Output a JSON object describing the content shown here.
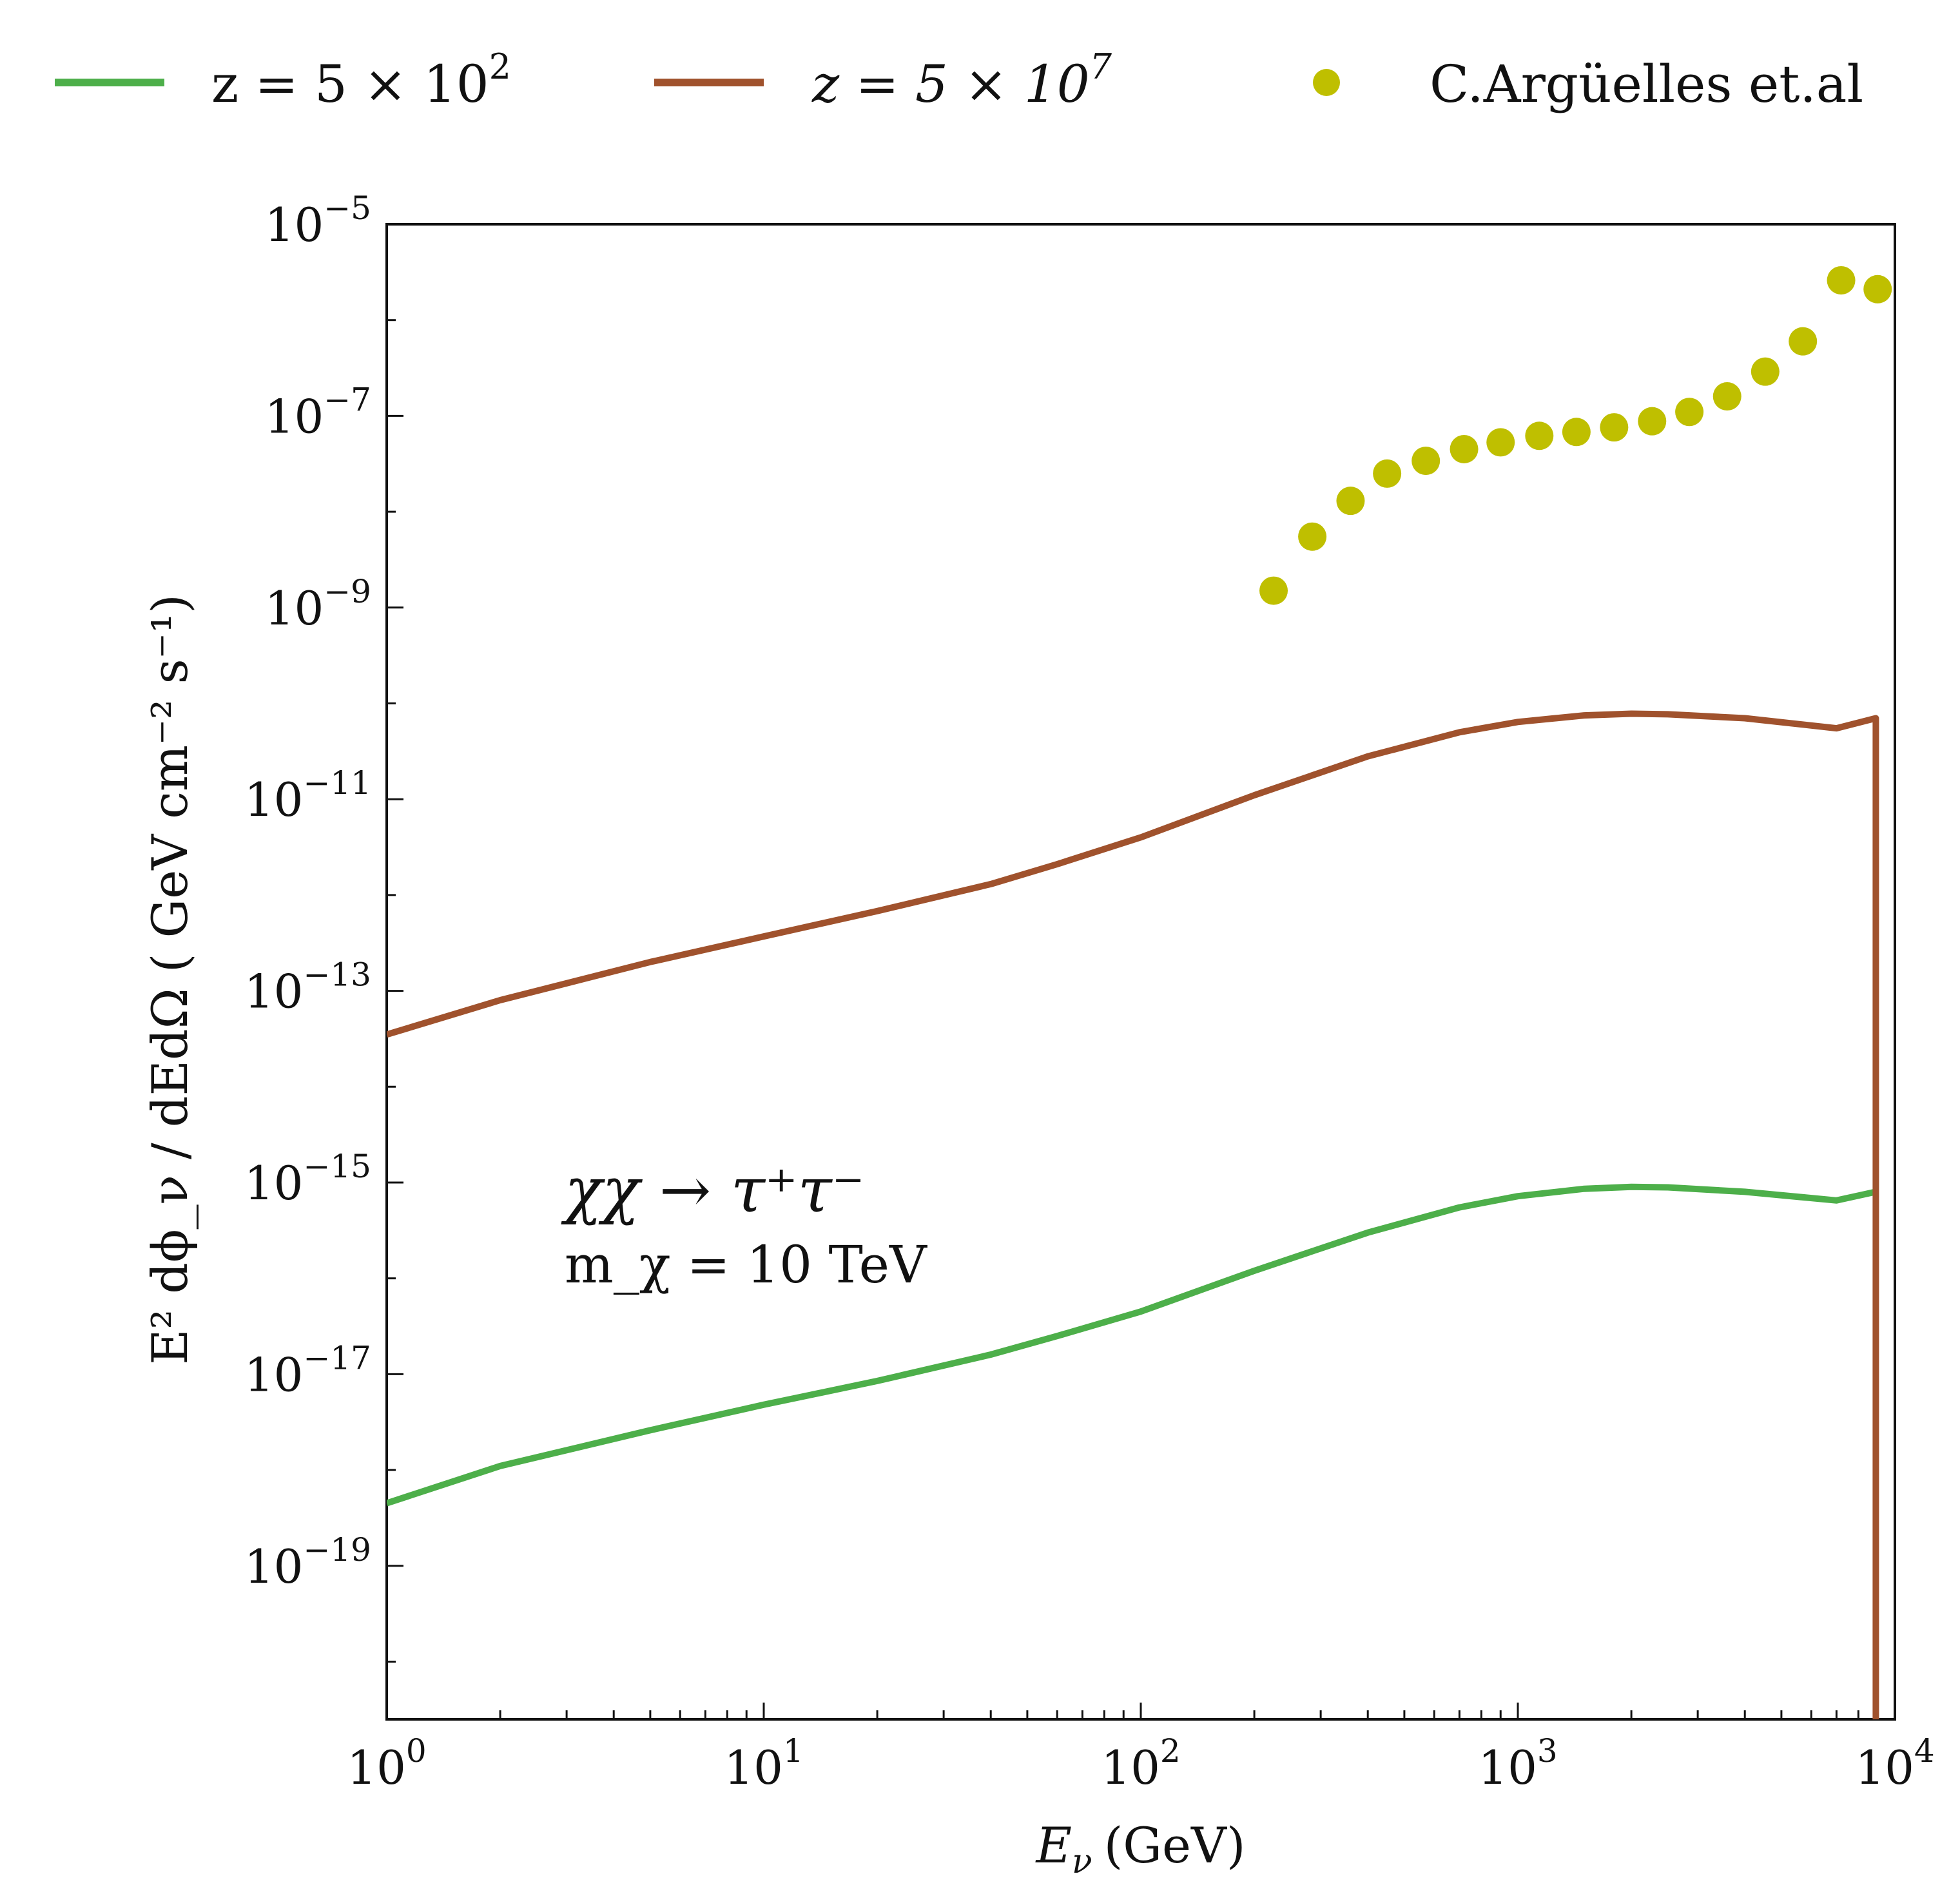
{
  "chart_data": {
    "type": "line",
    "xlabel_base": "E",
    "xlabel_sub": "ν",
    "xlabel_unit": "(GeV)",
    "ylabel": "E² dϕ_ν / dEdΩ ( GeV cm⁻² s⁻¹)",
    "xscale": "log",
    "yscale": "log",
    "xlim": [
      1,
      10000
    ],
    "ylim": [
      2.5e-21,
      1e-05
    ],
    "xticks": [
      {
        "value": 1,
        "base": "10",
        "exp": "0"
      },
      {
        "value": 10,
        "base": "10",
        "exp": "1"
      },
      {
        "value": 100,
        "base": "10",
        "exp": "2"
      },
      {
        "value": 1000,
        "base": "10",
        "exp": "3"
      },
      {
        "value": 10000,
        "base": "10",
        "exp": "4"
      }
    ],
    "yticks": [
      {
        "value": 1e-05,
        "base": "10",
        "exp": "−5"
      },
      {
        "value": 1e-07,
        "base": "10",
        "exp": "−7"
      },
      {
        "value": 1e-09,
        "base": "10",
        "exp": "−9"
      },
      {
        "value": 1e-11,
        "base": "10",
        "exp": "−11"
      },
      {
        "value": 1e-13,
        "base": "10",
        "exp": "−13"
      },
      {
        "value": 1e-15,
        "base": "10",
        "exp": "−15"
      },
      {
        "value": 1e-17,
        "base": "10",
        "exp": "−17"
      },
      {
        "value": 1e-19,
        "base": "10",
        "exp": "−19"
      }
    ],
    "legend_placement": "top, outside plot",
    "grid": false,
    "annotation": {
      "line1": "χχ → τ⁺τ⁻",
      "line2": "m_χ = 10 TeV"
    },
    "series": [
      {
        "name": "z = 5 × 10²",
        "legend_text": "z = 5 × 10",
        "legend_exp": "2",
        "kind": "line",
        "color": "#4daf4a",
        "x": [
          1,
          2,
          5,
          10,
          20,
          40,
          60,
          100,
          200,
          400,
          700,
          1000,
          1500,
          2000,
          2500,
          4000,
          7000,
          8900
        ],
        "y": [
          4.5e-19,
          1.1e-18,
          2.6e-18,
          4.8e-18,
          8.5e-18,
          1.6e-17,
          2.5e-17,
          4.5e-17,
          1.2e-16,
          3e-16,
          5.5e-16,
          7.2e-16,
          8.6e-16,
          9e-16,
          8.9e-16,
          8e-16,
          6.5e-16,
          8e-16
        ]
      },
      {
        "name": "z = 5 × 10⁷",
        "legend_text": "z = 5 × 10",
        "legend_exp": "7",
        "kind": "line",
        "color": "#a0522d",
        "x": [
          1,
          2,
          5,
          10,
          20,
          40,
          60,
          100,
          200,
          400,
          700,
          1000,
          1500,
          2000,
          2500,
          4000,
          7000,
          8900,
          8900
        ],
        "y": [
          3.5e-14,
          8e-14,
          2e-13,
          3.7e-13,
          6.8e-13,
          1.3e-12,
          2.1e-12,
          4e-12,
          1.1e-11,
          2.8e-11,
          5e-11,
          6.4e-11,
          7.5e-11,
          7.8e-11,
          7.7e-11,
          7e-11,
          5.5e-11,
          7e-11,
          1e-30
        ]
      },
      {
        "name": "C.Argüelles et.al",
        "legend_text": "C.Argüelles et.al",
        "kind": "scatter",
        "color": "#bfbf00",
        "x": [
          225,
          285,
          360,
          450,
          570,
          720,
          900,
          1140,
          1430,
          1800,
          2270,
          2850,
          3590,
          4530,
          5700,
          7200,
          9000
        ],
        "y": [
          1.5e-09,
          5.5e-09,
          1.3e-08,
          2.5e-08,
          3.4e-08,
          4.5e-08,
          5.3e-08,
          6.2e-08,
          6.8e-08,
          7.6e-08,
          8.8e-08,
          1.1e-07,
          1.6e-07,
          2.9e-07,
          6e-07,
          2.6e-06,
          2.1e-06
        ]
      }
    ]
  }
}
